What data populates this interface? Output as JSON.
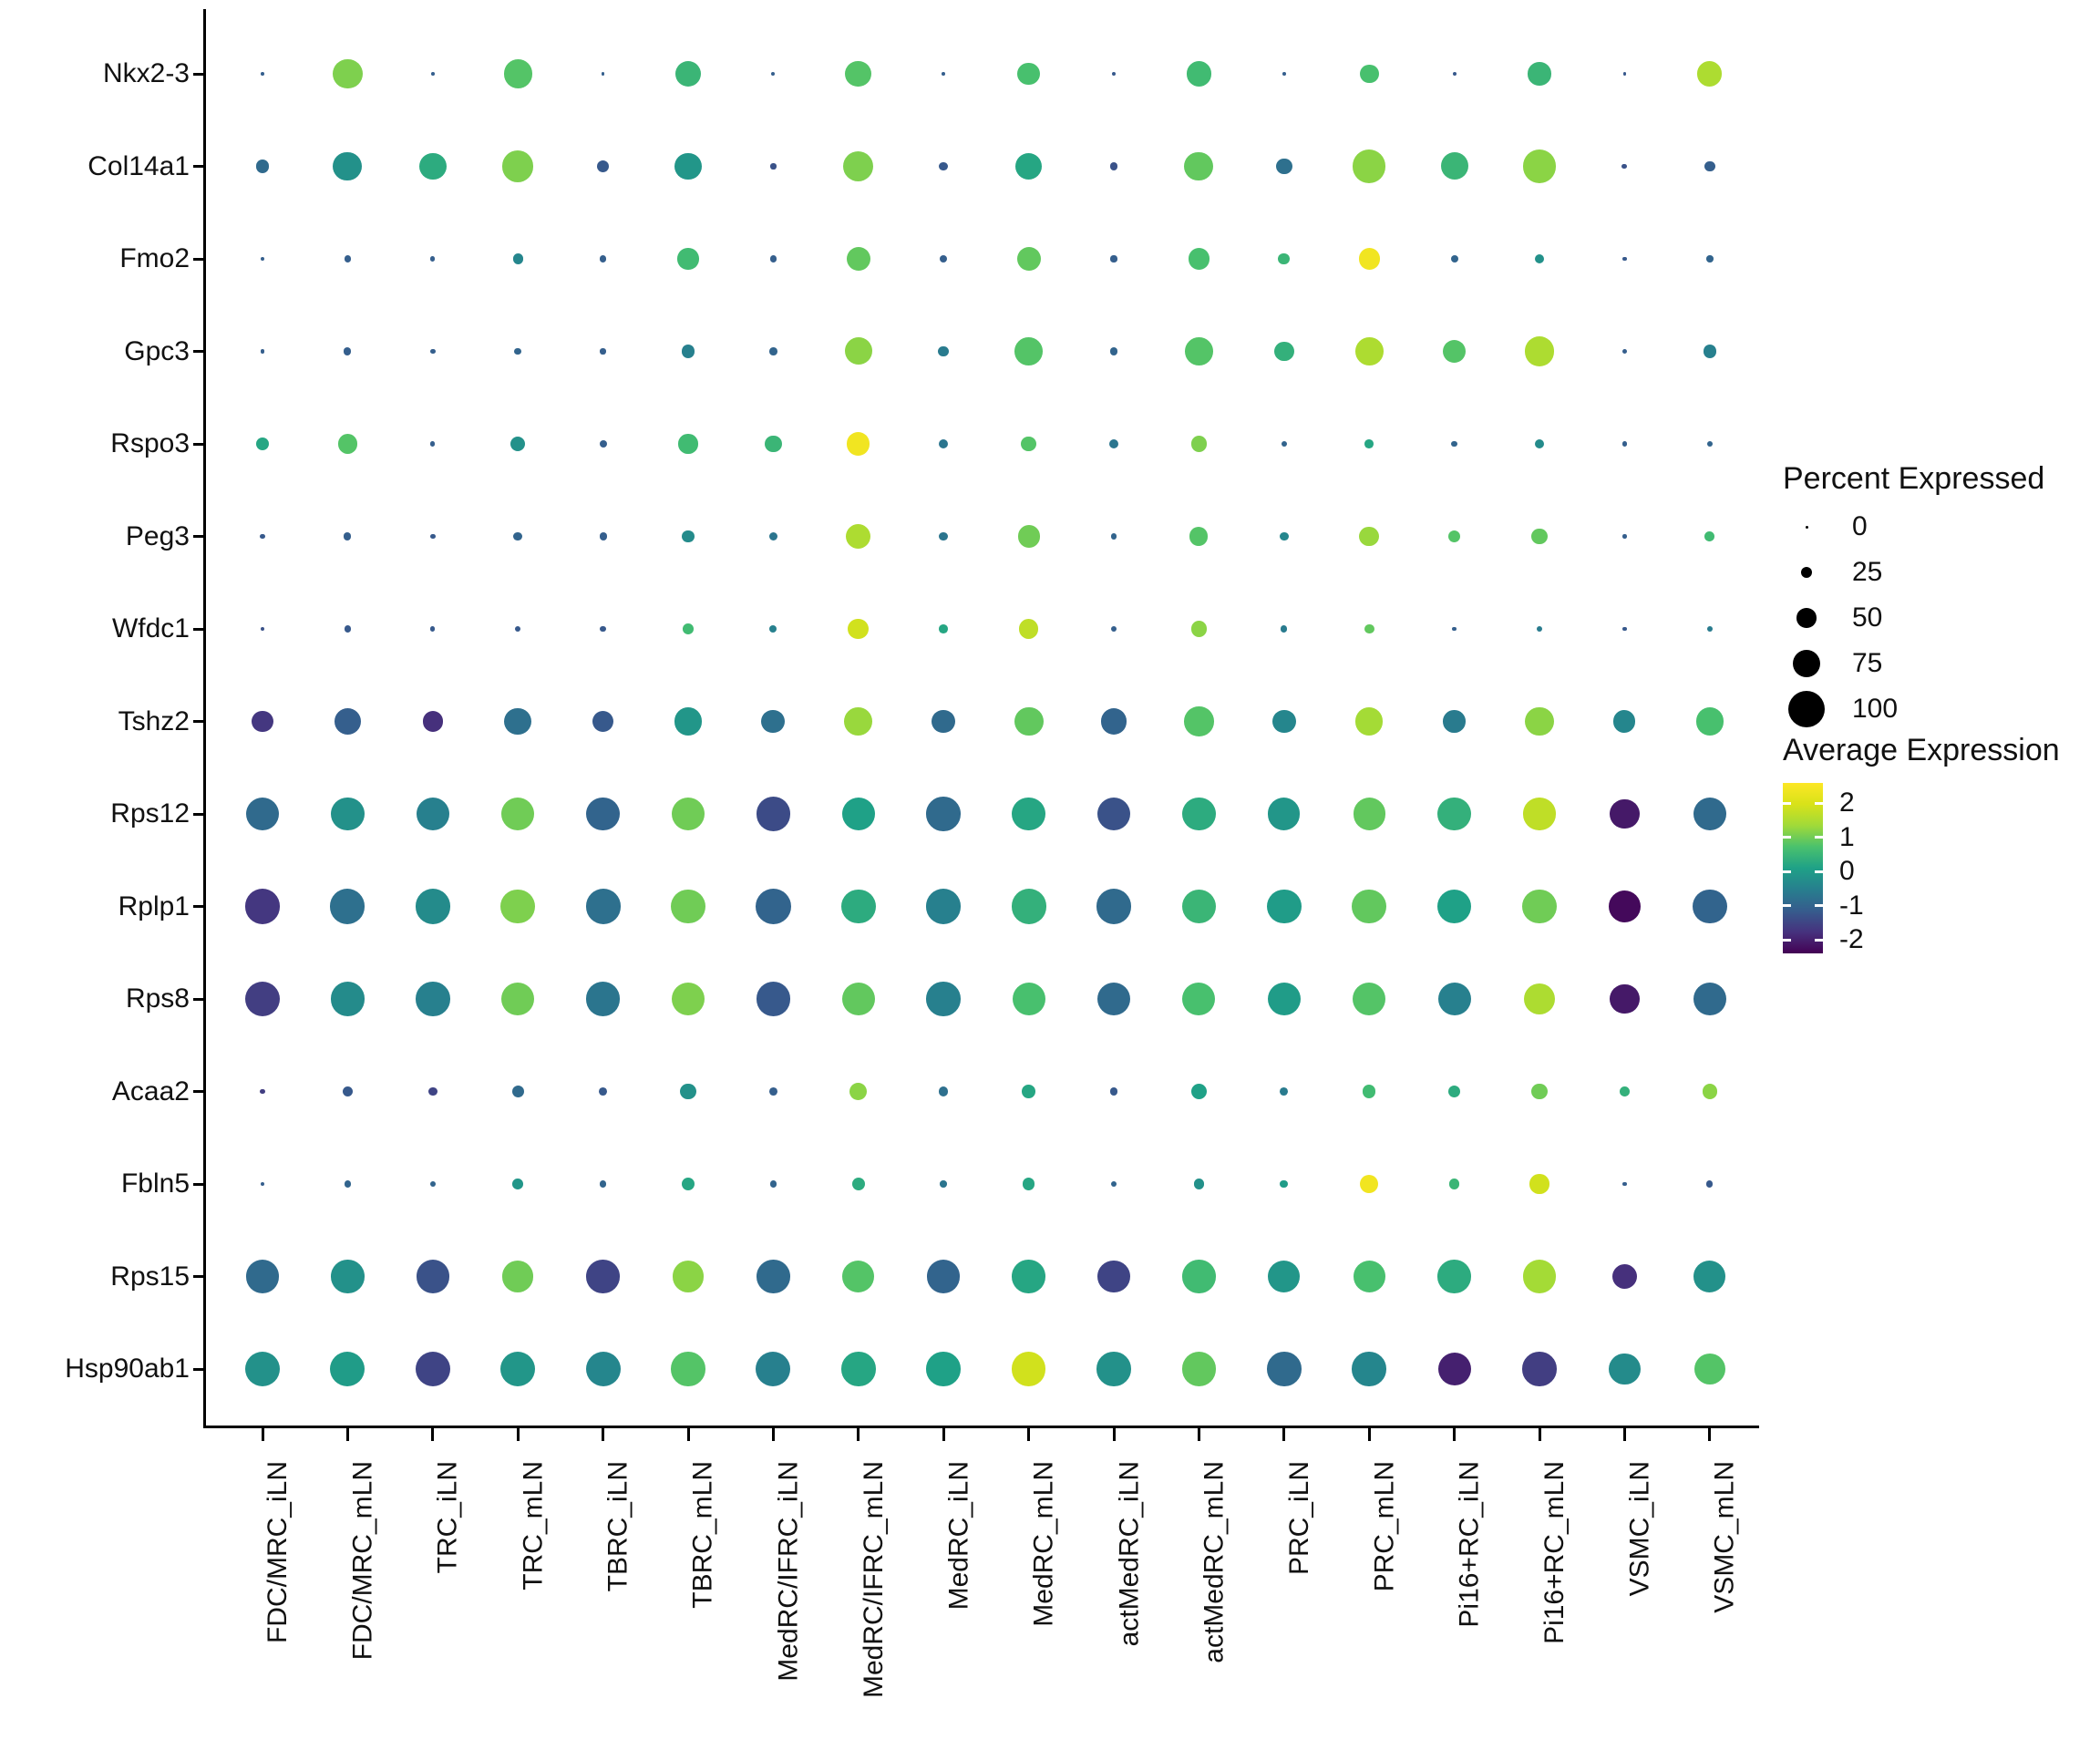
{
  "page": {
    "background": "#ffffff",
    "text_color": "#111111",
    "axis_color": "#000000"
  },
  "chart_data": {
    "type": "scatter",
    "subtype": "dot-plot (bubble matrix, Seurat-style gene expression)",
    "title": "",
    "xlabel": "",
    "ylabel": "",
    "grid": false,
    "legend_position": "right",
    "x_categories": [
      "FDC/MRC_iLN",
      "FDC/MRC_mLN",
      "TRC_iLN",
      "TRC_mLN",
      "TBRC_iLN",
      "TBRC_mLN",
      "MedRC/IFRC_iLN",
      "MedRC/IFRC_mLN",
      "MedRC_iLN",
      "MedRC_mLN",
      "actMedRC_iLN",
      "actMedRC_mLN",
      "PRC_iLN",
      "PRC_mLN",
      "Pi16+RC_iLN",
      "Pi16+RC_mLN",
      "VSMC_iLN",
      "VSMC_mLN"
    ],
    "y_categories": [
      "Nkx2-3",
      "Col14a1",
      "Fmo2",
      "Gpc3",
      "Rspo3",
      "Peg3",
      "Wfdc1",
      "Tshz2",
      "Rps12",
      "Rplp1",
      "Rps8",
      "Acaa2",
      "Fbln5",
      "Rps15",
      "Hsp90ab1"
    ],
    "size_encoding": {
      "label": "Percent Expressed",
      "legend_values": [
        0,
        25,
        50,
        75,
        100
      ]
    },
    "color_encoding": {
      "label": "Average Expression",
      "legend_ticks": [
        2,
        1,
        0,
        -1,
        -2
      ],
      "domain": [
        -2.4,
        2.6
      ],
      "palette": "viridis",
      "palette_anchors": [
        "#440154",
        "#46327e",
        "#365c8d",
        "#277f8e",
        "#1fa187",
        "#4ac16d",
        "#a0da39",
        "#d8e219",
        "#fde725"
      ]
    },
    "rows": [
      {
        "gene": "Nkx2-3",
        "pct": [
          2,
          81,
          2,
          76,
          2,
          68,
          3,
          70,
          2,
          59,
          3,
          65,
          2,
          48,
          3,
          60,
          2,
          66
        ],
        "expr": [
          -1.1,
          1.1,
          -1.1,
          0.8,
          -1.1,
          0.5,
          -1.1,
          0.8,
          -1.1,
          0.7,
          -1.2,
          0.6,
          -1.1,
          0.7,
          -1.2,
          0.5,
          -1.2,
          1.5
        ]
      },
      {
        "gene": "Col14a1",
        "pct": [
          30,
          78,
          72,
          85,
          28,
          72,
          9,
          82,
          18,
          72,
          15,
          78,
          40,
          90,
          73,
          90,
          8,
          24
        ],
        "expr": [
          -0.9,
          -0.2,
          0.3,
          1.1,
          -1.2,
          -0.1,
          -1.3,
          1.1,
          -1.2,
          0.2,
          -1.3,
          0.9,
          -0.8,
          1.2,
          0.5,
          1.2,
          -1.3,
          -1.1
        ]
      },
      {
        "gene": "Fmo2",
        "pct": [
          4,
          12,
          6,
          22,
          12,
          55,
          12,
          62,
          14,
          62,
          11,
          56,
          26,
          55,
          14,
          20,
          4,
          12
        ],
        "expr": [
          -1.1,
          -1.1,
          -1.1,
          -0.4,
          -1.1,
          0.6,
          -1.1,
          0.9,
          -1.1,
          0.9,
          -1.1,
          0.7,
          0.5,
          2.4,
          -1.0,
          -0.2,
          -1.2,
          -1.0
        ]
      },
      {
        "gene": "Gpc3",
        "pct": [
          4,
          14,
          8,
          12,
          9,
          30,
          15,
          73,
          24,
          75,
          15,
          75,
          50,
          75,
          60,
          80,
          6,
          30
        ],
        "expr": [
          -1.1,
          -1.1,
          -1.1,
          -1.0,
          -1.1,
          -0.5,
          -1.0,
          1.2,
          -0.6,
          0.8,
          -1.0,
          0.8,
          0.4,
          1.5,
          0.8,
          1.5,
          -1.1,
          -0.5
        ]
      },
      {
        "gene": "Rspo3",
        "pct": [
          32,
          49,
          6,
          36,
          14,
          49,
          43,
          60,
          20,
          36,
          20,
          40,
          9,
          18,
          9,
          20,
          6,
          9
        ],
        "expr": [
          0.2,
          0.8,
          -1.1,
          -0.2,
          -1.1,
          0.6,
          0.5,
          2.4,
          -0.7,
          0.8,
          -0.7,
          1.1,
          -1.0,
          0.2,
          -1.0,
          -0.3,
          -1.1,
          -1.0
        ]
      },
      {
        "gene": "Peg3",
        "pct": [
          6,
          14,
          8,
          18,
          14,
          28,
          18,
          65,
          18,
          57,
          9,
          46,
          18,
          51,
          28,
          40,
          4,
          21
        ],
        "expr": [
          -1.2,
          -1.1,
          -1.2,
          -1.0,
          -1.1,
          -0.3,
          -0.7,
          1.5,
          -0.7,
          1.0,
          -1.0,
          0.8,
          -0.4,
          1.3,
          0.8,
          0.9,
          -1.1,
          0.6
        ]
      },
      {
        "gene": "Wfdc1",
        "pct": [
          4,
          11,
          6,
          9,
          9,
          24,
          14,
          54,
          18,
          49,
          8,
          38,
          11,
          21,
          4,
          9,
          4,
          8
        ],
        "expr": [
          -1.3,
          -1.2,
          -1.2,
          -1.2,
          -1.2,
          0.6,
          -0.5,
          1.9,
          0.2,
          1.7,
          -1.1,
          1.2,
          -0.6,
          0.9,
          -1.1,
          -0.6,
          -1.2,
          -0.6
        ]
      },
      {
        "gene": "Tshz2",
        "pct": [
          55,
          70,
          52,
          72,
          55,
          75,
          62,
          75,
          62,
          78,
          68,
          80,
          62,
          74,
          58,
          78,
          57,
          74
        ],
        "expr": [
          -1.7,
          -1.1,
          -1.8,
          -0.8,
          -1.2,
          -0.1,
          -0.8,
          1.3,
          -0.9,
          0.9,
          -1.0,
          0.8,
          -0.4,
          1.4,
          -0.6,
          1.2,
          -0.4,
          0.7
        ]
      },
      {
        "gene": "Rps12",
        "pct": [
          90,
          90,
          90,
          90,
          90,
          90,
          93,
          90,
          93,
          90,
          90,
          90,
          87,
          87,
          90,
          87,
          80,
          90
        ],
        "expr": [
          -0.9,
          -0.2,
          -0.5,
          1.0,
          -1.0,
          1.0,
          -1.4,
          0.1,
          -0.9,
          0.2,
          -1.3,
          0.3,
          -0.1,
          0.9,
          0.4,
          1.7,
          -2.1,
          -0.9
        ]
      },
      {
        "gene": "Rplp1",
        "pct": [
          97,
          95,
          95,
          93,
          95,
          93,
          97,
          93,
          95,
          95,
          95,
          93,
          93,
          93,
          93,
          93,
          88,
          93
        ],
        "expr": [
          -1.7,
          -0.8,
          -0.3,
          1.1,
          -0.8,
          1.0,
          -1.0,
          0.3,
          -0.5,
          0.4,
          -0.9,
          0.5,
          0.0,
          0.9,
          0.1,
          1.0,
          -2.3,
          -1.0
        ]
      },
      {
        "gene": "Rps8",
        "pct": [
          95,
          93,
          93,
          89,
          93,
          89,
          93,
          89,
          93,
          89,
          89,
          89,
          89,
          89,
          89,
          85,
          80,
          89
        ],
        "expr": [
          -1.6,
          -0.3,
          -0.5,
          1.0,
          -0.7,
          1.1,
          -1.2,
          0.9,
          -0.5,
          0.7,
          -0.9,
          0.7,
          0.0,
          0.8,
          -0.5,
          1.5,
          -2.1,
          -0.9
        ]
      },
      {
        "gene": "Acaa2",
        "pct": [
          8,
          22,
          18,
          27,
          16,
          38,
          16,
          43,
          19,
          32,
          16,
          40,
          16,
          30,
          28,
          40,
          21,
          36
        ],
        "expr": [
          -1.6,
          -1.2,
          -1.5,
          -0.9,
          -1.2,
          -0.2,
          -1.1,
          1.2,
          -0.8,
          0.2,
          -1.2,
          0.1,
          -0.6,
          0.6,
          0.3,
          1.0,
          0.4,
          1.2
        ]
      },
      {
        "gene": "Fbln5",
        "pct": [
          4,
          12,
          8,
          24,
          12,
          32,
          11,
          30,
          12,
          28,
          9,
          22,
          16,
          46,
          22,
          49,
          4,
          11
        ],
        "expr": [
          -1.1,
          -1.0,
          -1.0,
          -0.1,
          -1.0,
          0.2,
          -1.0,
          0.3,
          -0.7,
          0.2,
          -1.0,
          -0.2,
          0.0,
          2.4,
          0.5,
          1.9,
          -1.1,
          -1.2
        ]
      },
      {
        "gene": "Rps15",
        "pct": [
          90,
          90,
          90,
          85,
          90,
          85,
          90,
          87,
          90,
          90,
          87,
          90,
          87,
          87,
          90,
          90,
          65,
          87
        ],
        "expr": [
          -0.9,
          -0.2,
          -1.3,
          1.0,
          -1.5,
          1.2,
          -0.9,
          0.8,
          -1.0,
          0.2,
          -1.5,
          0.6,
          -0.1,
          0.7,
          0.3,
          1.4,
          -1.8,
          -0.2
        ]
      },
      {
        "gene": "Hsp90ab1",
        "pct": [
          95,
          95,
          95,
          95,
          95,
          93,
          95,
          93,
          93,
          93,
          93,
          93,
          93,
          93,
          89,
          93,
          85,
          85
        ],
        "expr": [
          -0.2,
          0.0,
          -1.5,
          -0.1,
          -0.4,
          0.8,
          -0.5,
          0.2,
          0.1,
          1.9,
          -0.2,
          0.9,
          -0.9,
          -0.4,
          -2.0,
          -1.6,
          -0.3,
          0.8
        ]
      }
    ]
  },
  "legend_percent": {
    "title": "Percent Expressed",
    "items": [
      "0",
      "25",
      "50",
      "75",
      "100"
    ]
  },
  "legend_expression": {
    "title": "Average Expression",
    "ticks": [
      "2",
      "1",
      "0",
      "-1",
      "-2"
    ]
  }
}
